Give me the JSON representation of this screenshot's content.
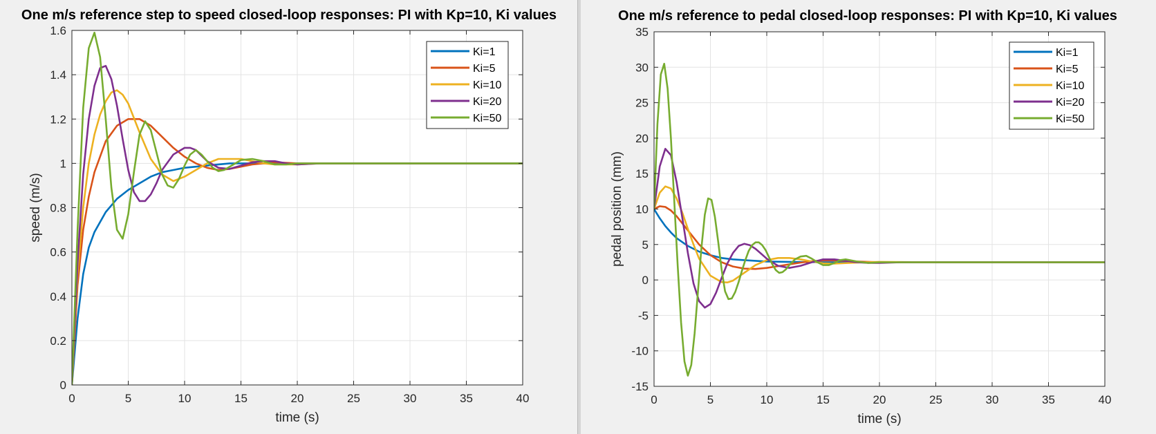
{
  "chart_data": [
    {
      "type": "line",
      "title": "One m/s reference step to speed closed-loop responses: PI with Kp=10, Ki values",
      "xlabel": "time (s)",
      "ylabel": "speed (m/s)",
      "xlim": [
        0,
        40
      ],
      "ylim": [
        0,
        1.6
      ],
      "xticks": [
        0,
        5,
        10,
        15,
        20,
        25,
        30,
        35,
        40
      ],
      "yticks": [
        0,
        0.2,
        0.4,
        0.6,
        0.8,
        1,
        1.2,
        1.4,
        1.6
      ],
      "grid": true,
      "legend_position": "top-right",
      "series": [
        {
          "name": "Ki=1",
          "color": "#0072BD",
          "x": [
            0,
            0.5,
            1,
            1.5,
            2,
            3,
            4,
            5,
            6,
            7,
            8,
            9,
            10,
            12,
            14,
            16,
            18,
            20,
            25,
            30,
            40
          ],
          "y": [
            0,
            0.3,
            0.5,
            0.62,
            0.69,
            0.78,
            0.84,
            0.88,
            0.91,
            0.94,
            0.96,
            0.97,
            0.98,
            0.99,
            1.0,
            1.0,
            1.0,
            1.0,
            1.0,
            1.0,
            1.0
          ]
        },
        {
          "name": "Ki=5",
          "color": "#D95319",
          "x": [
            0,
            0.5,
            1,
            1.5,
            2,
            3,
            4,
            5,
            6,
            7,
            8,
            9,
            10,
            11,
            12,
            13,
            14,
            15,
            16,
            18,
            20,
            25,
            40
          ],
          "y": [
            0,
            0.45,
            0.7,
            0.85,
            0.96,
            1.1,
            1.17,
            1.2,
            1.2,
            1.17,
            1.12,
            1.07,
            1.03,
            1.0,
            0.98,
            0.97,
            0.975,
            0.985,
            0.995,
            1.005,
            1.0,
            1.0,
            1.0
          ]
        },
        {
          "name": "Ki=10",
          "color": "#EDB120",
          "x": [
            0,
            0.5,
            1,
            1.5,
            2,
            2.5,
            3,
            3.5,
            4,
            4.5,
            5,
            6,
            7,
            8,
            9,
            10,
            11,
            12,
            13,
            14,
            15,
            16,
            17,
            18,
            20,
            22,
            25,
            40
          ],
          "y": [
            0,
            0.5,
            0.8,
            1.0,
            1.13,
            1.22,
            1.28,
            1.32,
            1.33,
            1.31,
            1.27,
            1.14,
            1.02,
            0.95,
            0.92,
            0.94,
            0.97,
            1.0,
            1.02,
            1.02,
            1.02,
            1.01,
            1.0,
            0.995,
            0.995,
            1.0,
            1.0,
            1.0
          ]
        },
        {
          "name": "Ki=20",
          "color": "#7E2F8E",
          "x": [
            0,
            0.5,
            1,
            1.5,
            2,
            2.5,
            3,
            3.5,
            4,
            4.5,
            5,
            5.5,
            6,
            6.5,
            7,
            7.5,
            8,
            9,
            10,
            10.5,
            11,
            12,
            13,
            14,
            15,
            16,
            17,
            18,
            19,
            20,
            22,
            25,
            40
          ],
          "y": [
            0,
            0.55,
            0.95,
            1.2,
            1.35,
            1.43,
            1.44,
            1.38,
            1.26,
            1.11,
            0.97,
            0.87,
            0.83,
            0.83,
            0.86,
            0.91,
            0.97,
            1.04,
            1.07,
            1.07,
            1.06,
            1.01,
            0.98,
            0.975,
            0.99,
            1.005,
            1.01,
            1.01,
            1.0,
            0.995,
            1.0,
            1.0,
            1.0
          ]
        },
        {
          "name": "Ki=50",
          "color": "#77AC30",
          "x": [
            0,
            0.5,
            1,
            1.5,
            2,
            2.5,
            3,
            3.5,
            4,
            4.5,
            5,
            5.5,
            6,
            6.5,
            7,
            7.5,
            8,
            8.5,
            9,
            9.5,
            10,
            10.5,
            11,
            11.5,
            12,
            12.5,
            13,
            13.5,
            14,
            15,
            16,
            17,
            18,
            19,
            20,
            22,
            25,
            40
          ],
          "y": [
            0,
            0.7,
            1.25,
            1.52,
            1.59,
            1.48,
            1.2,
            0.89,
            0.7,
            0.66,
            0.77,
            0.96,
            1.13,
            1.19,
            1.15,
            1.05,
            0.95,
            0.9,
            0.89,
            0.93,
            0.99,
            1.04,
            1.06,
            1.04,
            1.01,
            0.98,
            0.965,
            0.97,
            0.985,
            1.015,
            1.02,
            1.01,
            0.995,
            0.995,
            1.0,
            1.0,
            1.0,
            1.0
          ]
        }
      ]
    },
    {
      "type": "line",
      "title": "One m/s reference to pedal closed-loop responses: PI with Kp=10, Ki values",
      "xlabel": "time (s)",
      "ylabel": "pedal position (mm)",
      "xlim": [
        0,
        40
      ],
      "ylim": [
        -15,
        35
      ],
      "xticks": [
        0,
        5,
        10,
        15,
        20,
        25,
        30,
        35,
        40
      ],
      "yticks": [
        -15,
        -10,
        -5,
        0,
        5,
        10,
        15,
        20,
        25,
        30,
        35
      ],
      "grid": true,
      "legend_position": "top-right",
      "series": [
        {
          "name": "Ki=1",
          "color": "#0072BD",
          "x": [
            0,
            0.5,
            1,
            1.5,
            2,
            3,
            4,
            5,
            6,
            7,
            8,
            10,
            12,
            15,
            20,
            25,
            40
          ],
          "y": [
            10,
            8.7,
            7.6,
            6.7,
            5.9,
            4.8,
            4.0,
            3.5,
            3.1,
            2.9,
            2.8,
            2.6,
            2.55,
            2.5,
            2.5,
            2.5,
            2.5
          ]
        },
        {
          "name": "Ki=5",
          "color": "#D95319",
          "x": [
            0,
            0.5,
            1,
            1.5,
            2,
            3,
            4,
            5,
            6,
            7,
            8,
            9,
            10,
            11,
            12,
            13,
            14,
            15,
            16,
            18,
            20,
            25,
            40
          ],
          "y": [
            10,
            10.4,
            10.3,
            9.8,
            9.0,
            7.0,
            5.0,
            3.5,
            2.5,
            1.9,
            1.6,
            1.55,
            1.7,
            1.95,
            2.2,
            2.45,
            2.65,
            2.75,
            2.75,
            2.6,
            2.5,
            2.5,
            2.5
          ]
        },
        {
          "name": "Ki=10",
          "color": "#EDB120",
          "x": [
            0,
            0.5,
            1,
            1.5,
            2,
            2.5,
            3,
            3.5,
            4,
            5,
            6,
            6.5,
            7,
            8,
            9,
            10,
            11,
            12,
            13,
            14,
            15,
            16,
            18,
            20,
            25,
            40
          ],
          "y": [
            10,
            12.3,
            13.2,
            12.9,
            11.5,
            9.5,
            7.2,
            5.0,
            3.0,
            0.6,
            -0.3,
            -0.35,
            -0.1,
            1.0,
            2.1,
            2.8,
            3.1,
            3.1,
            2.9,
            2.6,
            2.35,
            2.3,
            2.45,
            2.55,
            2.5,
            2.5
          ]
        },
        {
          "name": "Ki=20",
          "color": "#7E2F8E",
          "x": [
            0,
            0.5,
            1,
            1.5,
            2,
            2.5,
            3,
            3.5,
            4,
            4.5,
            5,
            5.5,
            6,
            6.5,
            7,
            7.5,
            8,
            8.5,
            9,
            9.5,
            10,
            11,
            12,
            13,
            14,
            15,
            16,
            17,
            18,
            19,
            20,
            22,
            25,
            40
          ],
          "y": [
            10,
            16,
            18.5,
            17.6,
            13.8,
            8.8,
            3.8,
            -0.5,
            -3.0,
            -3.9,
            -3.4,
            -1.8,
            0.3,
            2.3,
            3.8,
            4.8,
            5.1,
            4.9,
            4.4,
            3.7,
            3.0,
            2.0,
            1.7,
            2.0,
            2.5,
            2.9,
            2.9,
            2.7,
            2.5,
            2.4,
            2.4,
            2.5,
            2.5,
            2.5
          ]
        },
        {
          "name": "Ki=50",
          "color": "#77AC30",
          "x": [
            0,
            0.3,
            0.6,
            0.9,
            1.2,
            1.5,
            1.8,
            2.1,
            2.4,
            2.7,
            3,
            3.3,
            3.6,
            3.9,
            4.2,
            4.5,
            4.8,
            5.1,
            5.4,
            5.7,
            6,
            6.3,
            6.6,
            6.9,
            7.2,
            7.5,
            7.8,
            8.1,
            8.4,
            8.7,
            9,
            9.3,
            9.6,
            9.9,
            10.2,
            10.5,
            10.8,
            11.1,
            11.4,
            11.7,
            12,
            12.5,
            13,
            13.5,
            14,
            14.5,
            15,
            15.5,
            16,
            16.5,
            17,
            18,
            19,
            20,
            22,
            25,
            40
          ],
          "y": [
            10,
            22,
            29,
            30.5,
            27,
            20,
            11,
            2,
            -6,
            -11.5,
            -13.5,
            -12,
            -7.5,
            -1.5,
            4.5,
            9.2,
            11.5,
            11.3,
            8.9,
            5.3,
            1.4,
            -1.6,
            -2.7,
            -2.6,
            -1.7,
            -0.3,
            1.3,
            2.8,
            4.1,
            4.9,
            5.3,
            5.3,
            4.9,
            4.2,
            3.2,
            2.2,
            1.4,
            1.0,
            1.1,
            1.5,
            2.1,
            2.9,
            3.3,
            3.4,
            3.0,
            2.5,
            2.1,
            2.1,
            2.4,
            2.8,
            2.9,
            2.6,
            2.4,
            2.5,
            2.5,
            2.5,
            2.5
          ]
        }
      ]
    }
  ]
}
